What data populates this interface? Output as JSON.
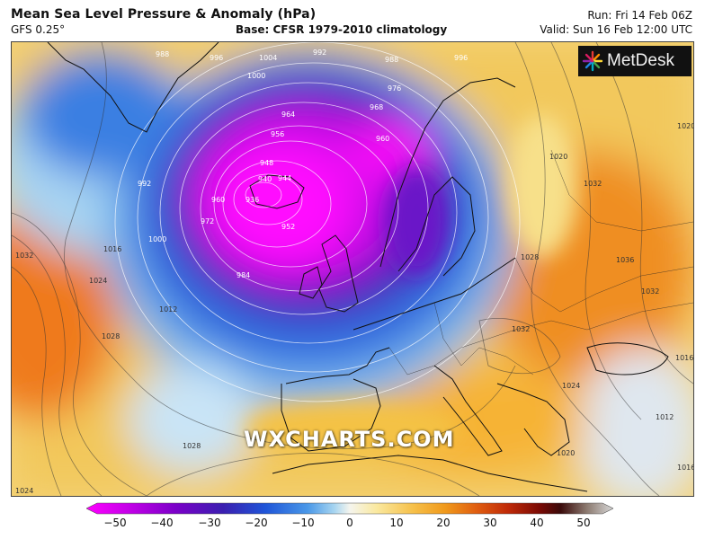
{
  "header": {
    "title": "Mean Sea Level Pressure & Anomaly (hPa)",
    "model": "GFS 0.25°",
    "base": "Base: CFSR 1979-2010 climatology",
    "run": "Run: Fri 14 Feb 06Z",
    "valid": "Valid: Sun 16 Feb 12:00 UTC"
  },
  "logo": {
    "text": "MetDesk",
    "icon": "metdesk-burst-icon"
  },
  "watermark": "WXCHARTS.COM",
  "isobar_labels": [
    "988",
    "996",
    "1004",
    "1000",
    "992",
    "988",
    "976",
    "996",
    "964",
    "968",
    "956",
    "960",
    "948",
    "944",
    "940",
    "936",
    "952",
    "960",
    "972",
    "984",
    "992",
    "1000",
    "1016",
    "1032",
    "1024",
    "1012",
    "1028",
    "1028",
    "1024",
    "1020",
    "1032",
    "1028",
    "1036",
    "1032",
    "1016",
    "1024",
    "1020",
    "1012",
    "1020",
    "1032",
    "1016"
  ],
  "colorbar": {
    "ticks": [
      "−50",
      "−40",
      "−30",
      "−20",
      "−10",
      "0",
      "10",
      "20",
      "30",
      "40",
      "50"
    ],
    "colors": [
      "#ff00ff",
      "#c400e8",
      "#7a00c8",
      "#3a1fb0",
      "#1f55d8",
      "#4a98e8",
      "#a6d4f0",
      "#f5f5ee",
      "#fae9a0",
      "#f6c04a",
      "#f09a1c",
      "#e05e10",
      "#c02a08",
      "#7a0a04",
      "#3a0a0a",
      "#8c7a70",
      "#d8d8d8"
    ]
  }
}
